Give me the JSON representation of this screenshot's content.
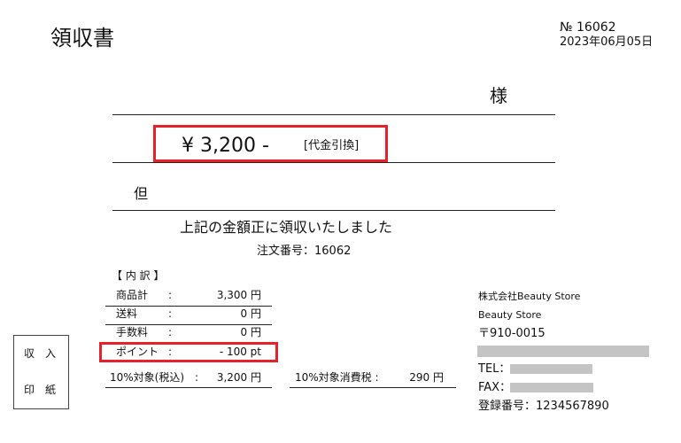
{
  "title": "領収書",
  "number": "№ 16062",
  "date": "2023年06月05日",
  "honorific": "様",
  "amount": "¥  3,200  -",
  "payment_method": "[代金引換]",
  "tadashi": "但",
  "statement": "上記の金額正に領収いたしました",
  "order_number": "注文番号：16062",
  "breakdown": {
    "heading": "【 内 訳 】",
    "rows": [
      {
        "label": "商品計",
        "colon": ":",
        "value": "3,300 円"
      },
      {
        "label": "送料",
        "colon": ":",
        "value": "0 円"
      },
      {
        "label": "手数料",
        "colon": ":",
        "value": "0 円"
      },
      {
        "label": "ポイント",
        "colon": ":",
        "value": "- 100 pt"
      }
    ],
    "taxable_label": "10%対象(税込)　:",
    "taxable_value": "3,200 円",
    "tax_label": "10%対象消費税 :",
    "tax_value": "290 円"
  },
  "stamp": {
    "line1": "収　入",
    "line2": "印　紙"
  },
  "issuer": {
    "company": "株式会社Beauty Store",
    "store": "Beauty Store",
    "postal": "〒910-0015",
    "tel_label": "TEL：",
    "fax_label": "FAX：",
    "registration": "登録番号：1234567890"
  },
  "colors": {
    "highlight": "#e8202a",
    "redaction": "#c4c4c4"
  }
}
